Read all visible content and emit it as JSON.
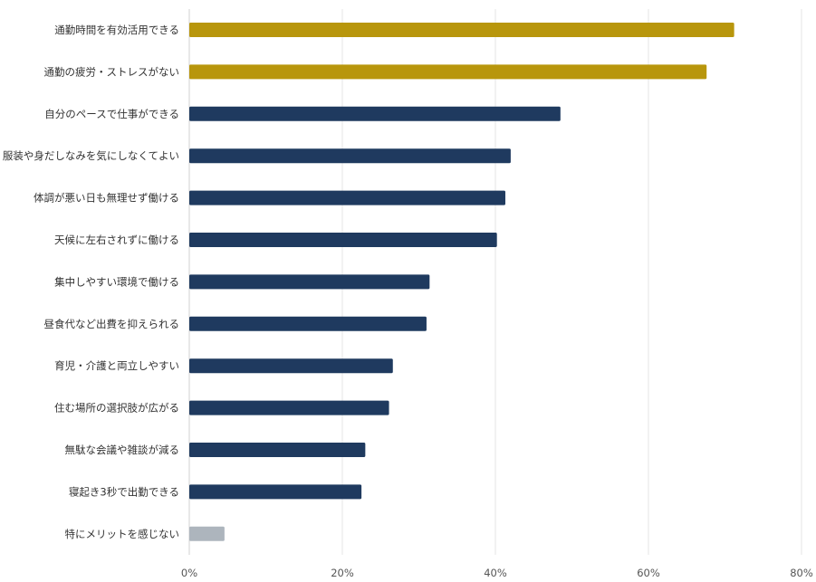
{
  "chart_data": {
    "type": "bar",
    "orientation": "horizontal",
    "categories": [
      "通勤時間を有効活用できる",
      "通勤の疲労・ストレスがない",
      "自分のペースで仕事ができる",
      "服装や身だしなみを気にしなくてよい",
      "体調が悪い日も無理せず働ける",
      "天候に左右されずに働ける",
      "集中しやすい環境で働ける",
      "昼食代など出費を抑えられる",
      "育児・介護と両立しやすい",
      "住む場所の選択肢が広がる",
      "無駄な会議や雑談が減る",
      "寝起き3秒で出勤できる",
      "特にメリットを感じない"
    ],
    "values": [
      71.2,
      67.6,
      48.5,
      42.0,
      41.3,
      40.2,
      31.4,
      31.0,
      26.6,
      26.1,
      23.0,
      22.5,
      4.6
    ],
    "bar_colors": [
      "#b8960c",
      "#b8960c",
      "#1f3a5f",
      "#1f3a5f",
      "#1f3a5f",
      "#1f3a5f",
      "#1f3a5f",
      "#1f3a5f",
      "#1f3a5f",
      "#1f3a5f",
      "#1f3a5f",
      "#1f3a5f",
      "#adb5bd"
    ],
    "xlim": [
      0,
      80
    ],
    "xticks": [
      0,
      20,
      40,
      60,
      80
    ],
    "xtick_labels": [
      "0%",
      "20%",
      "40%",
      "60%",
      "80%"
    ],
    "grid": true,
    "title": "",
    "xlabel": "",
    "ylabel": ""
  }
}
